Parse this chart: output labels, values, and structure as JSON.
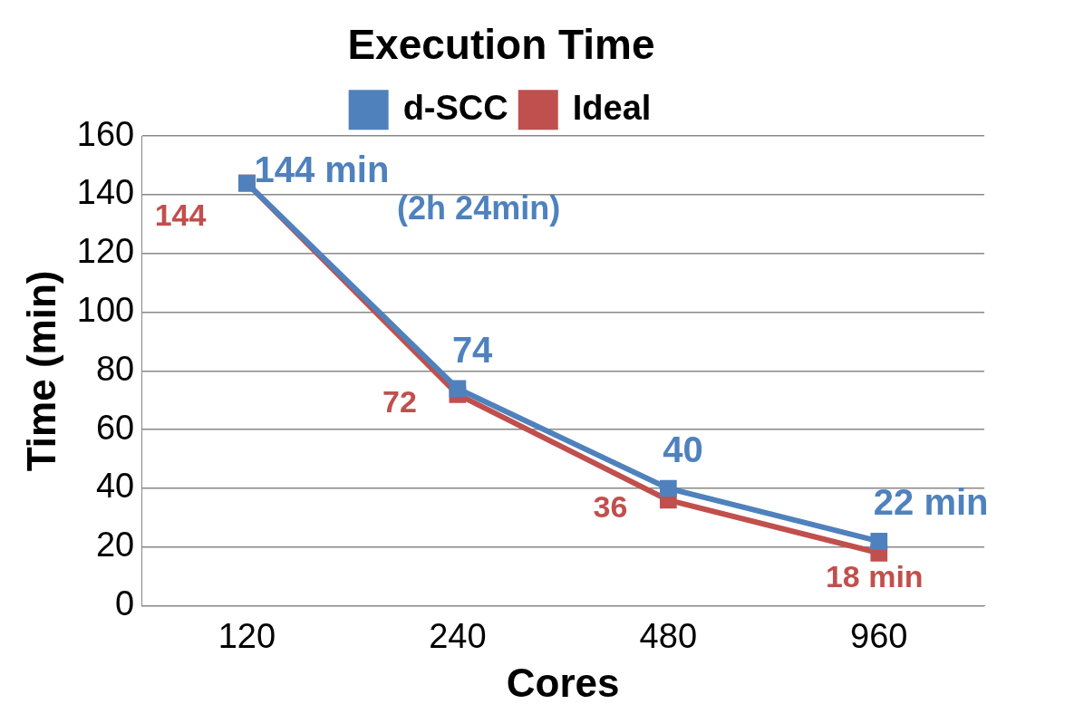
{
  "chart_data": {
    "type": "line",
    "title": "Execution Time",
    "xlabel": "Cores",
    "ylabel": "Time (min)",
    "categories": [
      "120",
      "240",
      "480",
      "960"
    ],
    "series": [
      {
        "name": "d-SCC",
        "color": "#4f81bd",
        "values": [
          144,
          74,
          40,
          22
        ],
        "value_labels": [
          "144 min",
          "74",
          "40",
          "22 min"
        ]
      },
      {
        "name": "Ideal",
        "color": "#c0504d",
        "values": [
          144,
          72,
          36,
          18
        ],
        "value_labels": [
          "144",
          "72",
          "36",
          "18 min"
        ]
      }
    ],
    "annotations": [
      "(2h 24min)"
    ],
    "ylim": [
      0,
      160
    ],
    "yticks": [
      0,
      20,
      40,
      60,
      80,
      100,
      120,
      140,
      160
    ],
    "grid": "y",
    "legend": "top",
    "marker": "square",
    "line_style": "solid"
  }
}
